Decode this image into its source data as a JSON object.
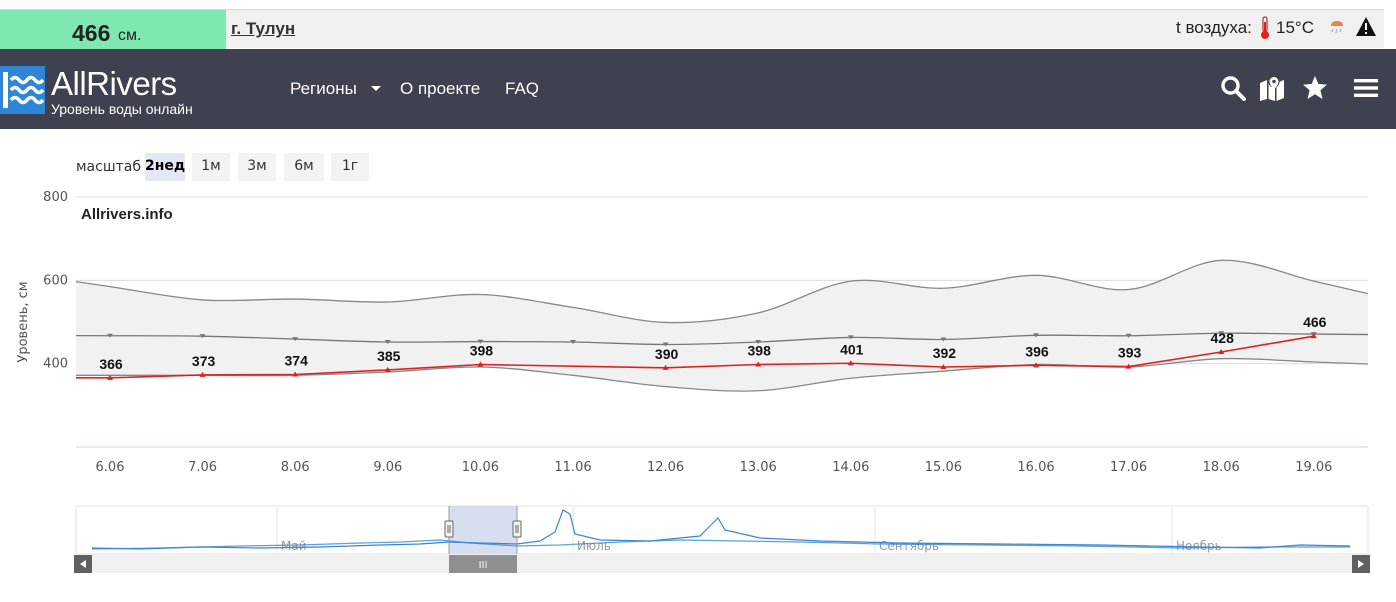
{
  "infobar": {
    "level_value": "466",
    "level_unit": "см.",
    "city": "г. Тулун",
    "air_label": "t воздуха:",
    "air_temp": "15°C",
    "level_color": "#7fe8b2"
  },
  "header": {
    "logo_name": "AllRivers",
    "logo_sub": "Уровень воды онлайн",
    "nav": [
      "Регионы",
      "О проекте",
      "FAQ"
    ],
    "icons": [
      "search-icon",
      "map-icon",
      "star-icon",
      "menu-icon"
    ],
    "bg_color": "#3d4150"
  },
  "scale": {
    "label": "масштаб",
    "buttons": [
      "2нед",
      "1м",
      "3м",
      "6м",
      "1г"
    ],
    "active": "2нед"
  },
  "chart_data": {
    "type": "line",
    "credit": "Allrivers.info",
    "ylabel": "Уровень, см",
    "ylim": [
      200,
      800
    ],
    "yticks": [
      400,
      600,
      800
    ],
    "x": [
      "6.06",
      "7.06",
      "8.06",
      "9.06",
      "10.06",
      "11.06",
      "12.06",
      "13.06",
      "14.06",
      "15.06",
      "16.06",
      "17.06",
      "18.06",
      "19.06"
    ],
    "series": [
      {
        "role": "current",
        "color": "#e02020",
        "points": [
          {
            "x": "6.06",
            "y": 366,
            "label": "366"
          },
          {
            "x": "7.06",
            "y": 373,
            "label": "373"
          },
          {
            "x": "8.06",
            "y": 374,
            "label": "374"
          },
          {
            "x": "9.06",
            "y": 385,
            "label": "385"
          },
          {
            "x": "10.06",
            "y": 398,
            "label": "398"
          },
          {
            "x": "12.06",
            "y": 390,
            "label": "390"
          },
          {
            "x": "13.06",
            "y": 398,
            "label": "398"
          },
          {
            "x": "14.06",
            "y": 401,
            "label": "401"
          },
          {
            "x": "15.06",
            "y": 392,
            "label": "392"
          },
          {
            "x": "16.06",
            "y": 396,
            "label": "396"
          },
          {
            "x": "17.06",
            "y": 393,
            "label": "393"
          },
          {
            "x": "18.06",
            "y": 428,
            "label": "428"
          },
          {
            "x": "19.06",
            "y": 466,
            "label": "466"
          }
        ]
      },
      {
        "role": "mean",
        "color": "#777777",
        "values": [
          467,
          466,
          459,
          452,
          453,
          452,
          446,
          452,
          463,
          458,
          468,
          467,
          473,
          471
        ]
      },
      {
        "role": "max",
        "color": "#888888",
        "values": [
          585,
          553,
          555,
          548,
          566,
          535,
          499,
          522,
          598,
          581,
          612,
          578,
          648,
          598
        ]
      },
      {
        "role": "min",
        "color": "#888888",
        "values": [
          372,
          372,
          372,
          380,
          392,
          372,
          345,
          335,
          365,
          382,
          398,
          392,
          412,
          404
        ]
      }
    ],
    "band_fill": "#f1f1f1",
    "navigator": {
      "months": [
        "Май",
        "Июль",
        "Сентябрь",
        "Ноябрь"
      ],
      "handle_label": "III",
      "line_color": "#3a86d4"
    }
  }
}
